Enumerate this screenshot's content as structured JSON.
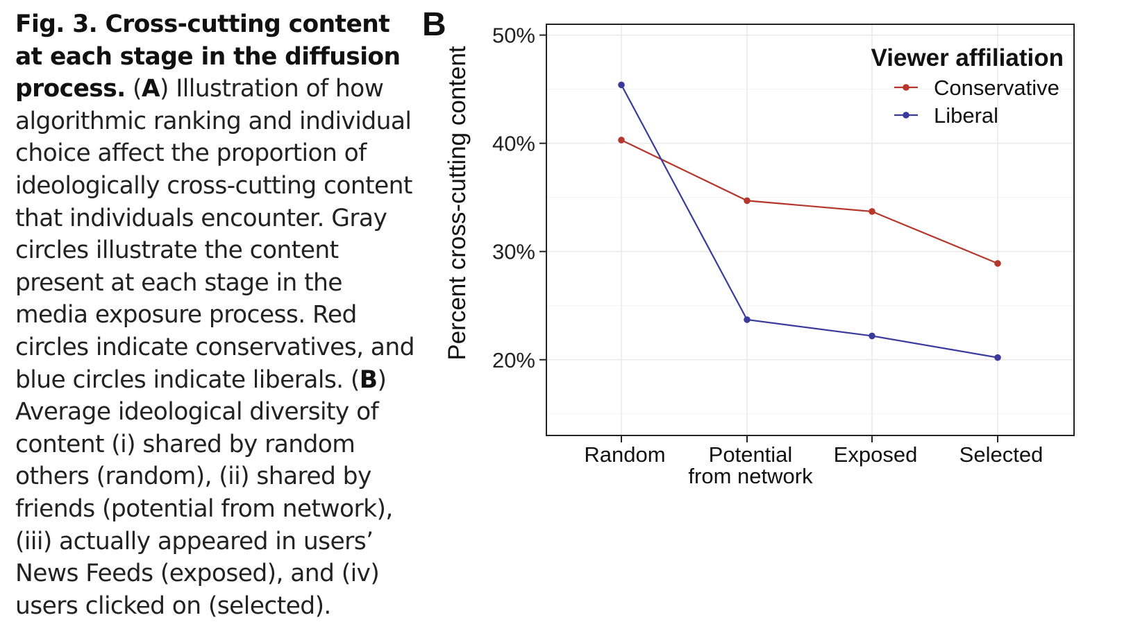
{
  "caption": {
    "lead": "Fig. 3. Cross-cutting content at each stage in the diffusion process.",
    "part1": " (",
    "label_a": "A",
    "part2": ") Illustration of how algorithmic ranking and individual choice affect the proportion of ideologically cross-cutting content that individuals encounter. Gray circles illustrate the content present at each stage in the media exposure process. Red circles indicate conservatives, and blue circles indicate liberals. (",
    "label_b": "B",
    "part3": ") Average ideological diversity of content (i) shared by random others (random), (ii) shared by friends (potential from network), (iii) actually appeared in users’ News Feeds (exposed), and (iv) users clicked on (selected)."
  },
  "panel_label": "B",
  "colors": {
    "conservative": "#b5362b",
    "liberal": "#3a3a9c",
    "grid": "#e9e9e9",
    "axis": "#222222"
  },
  "chart_data": {
    "type": "line",
    "categories": [
      "Random",
      "Potential\nfrom network",
      "Exposed",
      "Selected"
    ],
    "series": [
      {
        "name": "Conservative",
        "values": [
          40.3,
          34.7,
          33.7,
          28.9
        ]
      },
      {
        "name": "Liberal",
        "values": [
          45.4,
          23.7,
          22.2,
          20.2
        ]
      }
    ],
    "ylabel": "Percent cross-cutting content",
    "yticks": [
      20,
      30,
      40,
      50
    ],
    "ytick_labels": [
      "20%",
      "30%",
      "40%",
      "50%"
    ],
    "ylim": [
      13,
      51
    ],
    "legend": {
      "title": "Viewer affiliation",
      "position": "top-right"
    },
    "grid": true
  }
}
